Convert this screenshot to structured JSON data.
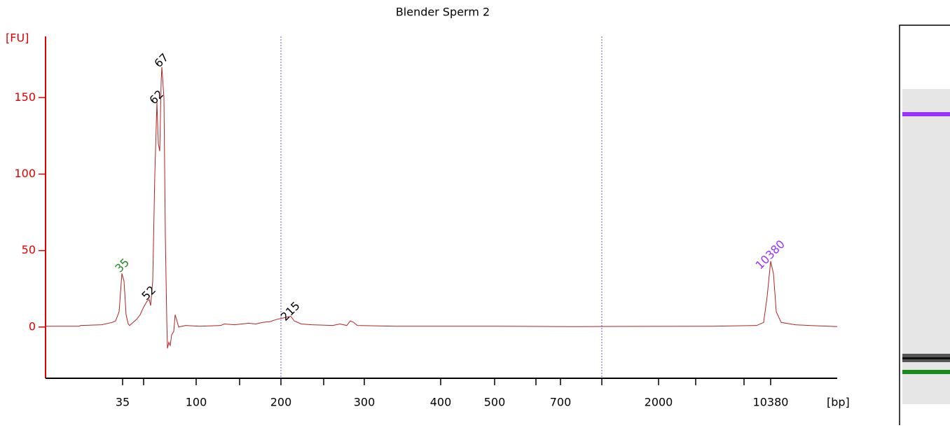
{
  "chart_data": {
    "type": "line",
    "title": "Blender Sperm 2",
    "y_label": "[FU]",
    "x_label": "[bp]",
    "xlim": [
      0,
      113
    ],
    "ylim": [
      -33.5,
      190
    ],
    "yticks": [
      0,
      50,
      100,
      150
    ],
    "xticks": [
      {
        "value": 11,
        "label": "35"
      },
      {
        "value": 21.5,
        "label": "100"
      },
      {
        "value": 33.6,
        "label": "200"
      },
      {
        "value": 45.5,
        "label": "300"
      },
      {
        "value": 56.4,
        "label": "400"
      },
      {
        "value": 64.1,
        "label": "500"
      },
      {
        "value": 73.5,
        "label": "700"
      },
      {
        "value": 87.5,
        "label": "2000"
      },
      {
        "value": 103.5,
        "label": "10380"
      }
    ],
    "minor_xticks": [
      14,
      27.7,
      39.7,
      70,
      79.4,
      92.8,
      99.7
    ],
    "vlines": [
      33.6,
      79.4
    ],
    "series": [
      {
        "name": "Blender Sperm 2",
        "color": "#b22222",
        "x": [
          0,
          4.8,
          5,
          8,
          9.5,
          10,
          10.5,
          10.9,
          11.2,
          11.5,
          11.8,
          12,
          12.5,
          13,
          13.5,
          14,
          14.5,
          14.8,
          15,
          15.3,
          15.6,
          15.9,
          16.1,
          16.3,
          16.5,
          16.6,
          16.9,
          17.1,
          17.3,
          17.4,
          17.6,
          17.8,
          18,
          18.3,
          18.5,
          18.7,
          19,
          20,
          22,
          25,
          25.5,
          27,
          28,
          29,
          30,
          31,
          32,
          33,
          34,
          35,
          35.5,
          36.5,
          38,
          41,
          42,
          43,
          43.5,
          44,
          44.5,
          50,
          65,
          75,
          95,
          101.5,
          102.5,
          103,
          103.5,
          103.9,
          104.3,
          105,
          107,
          109,
          113
        ],
        "values": [
          0.5,
          0.5,
          1,
          1.5,
          3,
          4,
          10,
          35,
          30,
          8,
          2,
          1,
          3,
          5,
          8,
          13,
          17,
          18,
          14,
          30,
          100,
          147,
          120,
          115,
          160,
          170,
          150,
          60,
          5,
          -14,
          -10,
          -12,
          -5,
          -3,
          8,
          5,
          0,
          1,
          0.5,
          1,
          2,
          1.5,
          2,
          2.5,
          2,
          3,
          3.5,
          5,
          6,
          7,
          4,
          2,
          1.5,
          1,
          2,
          1,
          4,
          3,
          1,
          0.5,
          0.5,
          0.3,
          0.5,
          1,
          3,
          20,
          43,
          35,
          10,
          3,
          1.5,
          1,
          0.3
        ]
      }
    ],
    "annotations": [
      {
        "text": "35",
        "x": 11,
        "y": 40,
        "color": "#228b22"
      },
      {
        "text": "52",
        "x": 14.8,
        "y": 22,
        "color": "#000000"
      },
      {
        "text": "62",
        "x": 15.9,
        "y": 150,
        "color": "#000000"
      },
      {
        "text": "67",
        "x": 16.6,
        "y": 174,
        "color": "#000000"
      },
      {
        "text": "215",
        "x": 35,
        "y": 10,
        "color": "#000000"
      },
      {
        "text": "10380",
        "x": 103.5,
        "y": 47,
        "color": "#9b30ff"
      }
    ]
  }
}
